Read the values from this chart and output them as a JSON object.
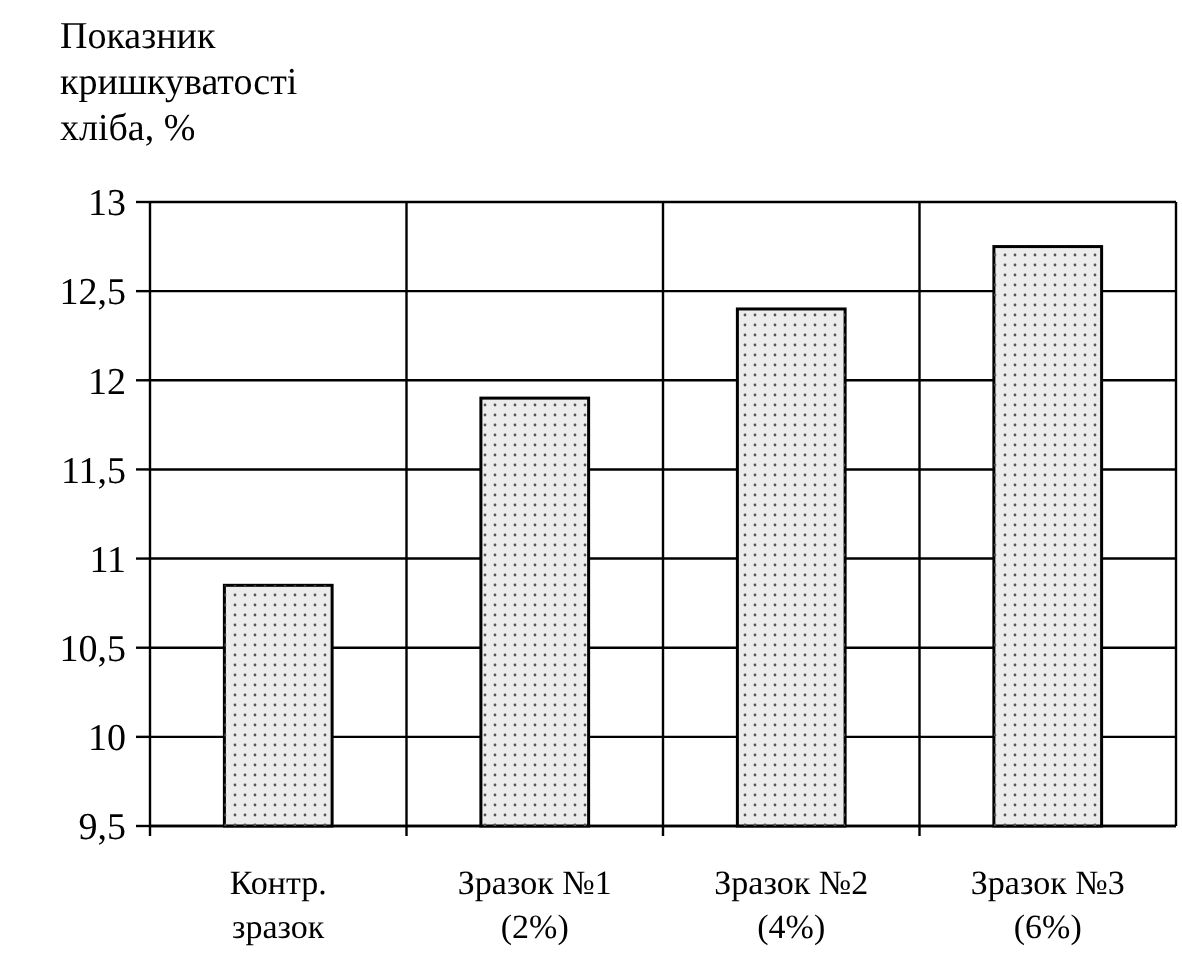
{
  "chart_data": {
    "type": "bar",
    "ylabel": "Показник\nкришкуватості\nхліба, %",
    "categories": [
      "Контр.\nзразок",
      "Зразок №1\n(2%)",
      "Зразок №2\n(4%)",
      "Зразок №3\n(6%)"
    ],
    "values": [
      10.85,
      11.9,
      12.4,
      12.75
    ],
    "color": "#ececec",
    "ylim": [
      9.5,
      13
    ],
    "yticks": [
      {
        "value": 9.5,
        "label": "9,5"
      },
      10,
      {
        "value": 10.5,
        "label": "10,5"
      },
      11,
      {
        "value": 11.5,
        "label": "11,5"
      },
      12,
      {
        "value": 12.5,
        "label": "12,5"
      },
      13
    ],
    "grid": true
  }
}
